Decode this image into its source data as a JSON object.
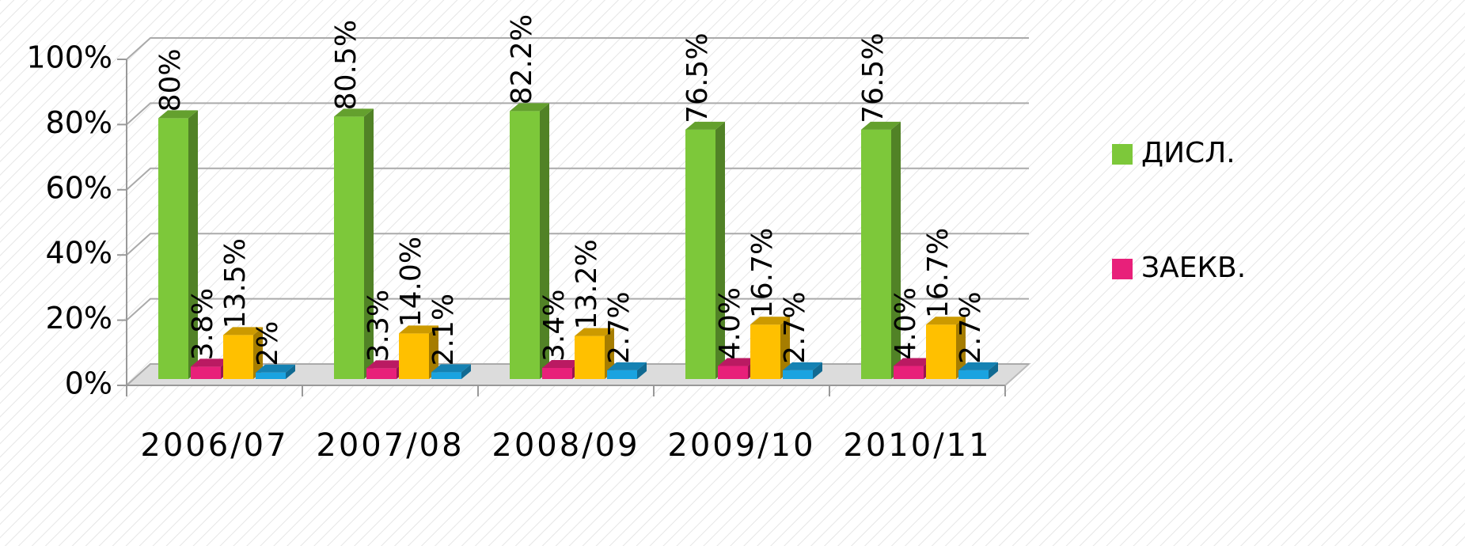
{
  "chart_data": {
    "type": "bar3d",
    "categories": [
      "2006/07",
      "2007/08",
      "2008/09",
      "2009/10",
      "2010/11"
    ],
    "series": [
      {
        "name": "ДИСЛ.",
        "color": "#7dc83a",
        "values": [
          80,
          80.5,
          82.2,
          76.5,
          76.5
        ],
        "value_labels": [
          "80%",
          "80.5%",
          "82.2%",
          "76.5%",
          "76.5%"
        ]
      },
      {
        "name": "ЗАЕКВ.",
        "color": "#e8207a",
        "values": [
          3.8,
          3.3,
          3.4,
          4.0,
          4.0
        ],
        "value_labels": [
          "3.8%",
          "3.3%",
          "3.4%",
          "4.0%",
          "4.0%"
        ]
      },
      {
        "color": "#ffc000",
        "values": [
          13.5,
          14.0,
          13.2,
          16.7,
          16.7
        ],
        "value_labels": [
          "13.5%",
          "14.0%",
          "13.2%",
          "16.7%",
          "16.7%"
        ]
      },
      {
        "color": "#1aa3e0",
        "values": [
          2,
          2.1,
          2.7,
          2.7,
          2.7
        ],
        "value_labels": [
          "2%",
          "2.1%",
          "2.7%",
          "2.7%",
          "2.7%"
        ]
      }
    ],
    "ylim": [
      0,
      100
    ],
    "yticks": [
      {
        "value": 0,
        "label": "0%"
      },
      {
        "value": 20,
        "label": "20%"
      },
      {
        "value": 40,
        "label": "40%"
      },
      {
        "value": 60,
        "label": "60%"
      },
      {
        "value": 80,
        "label": "80%"
      },
      {
        "value": 100,
        "label": "100%"
      }
    ],
    "grid": true,
    "legend": "right"
  }
}
